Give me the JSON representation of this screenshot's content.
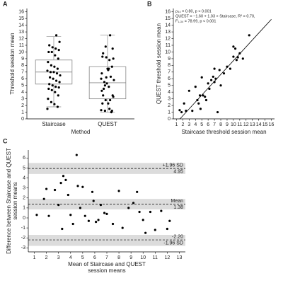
{
  "chart_data": [
    {
      "type": "box",
      "panel": "A",
      "y_label": "Threshold session mean",
      "x_label": "Method",
      "categories": [
        "Staircase",
        "QUEST"
      ],
      "ylim": [
        0,
        16.5
      ],
      "yticks": [
        0,
        1,
        2,
        3,
        4,
        5,
        6,
        7,
        8,
        9,
        10,
        11,
        12,
        13,
        14,
        15,
        16
      ],
      "color": "#000000",
      "box_color": "#888888",
      "boxes": [
        {
          "min": 1.8,
          "q1": 5.2,
          "median": 7.0,
          "q3": 8.8,
          "max": 12.3,
          "points": [
            1.5,
            1.8,
            2.2,
            2.5,
            3,
            3.5,
            4,
            4.3,
            4.5,
            4.7,
            4.8,
            5,
            5.2,
            5.5,
            5.7,
            6,
            6.2,
            6.5,
            6.8,
            7,
            7,
            7.2,
            7.5,
            7.8,
            8,
            8.5,
            9,
            9.5,
            10,
            10,
            10.3,
            10.5,
            10.7,
            11,
            11.5,
            12.5
          ]
        },
        {
          "min": 1.0,
          "q1": 3.0,
          "median": 5.4,
          "q3": 7.8,
          "max": 12.5,
          "points": [
            1.3,
            1.0,
            2.3,
            1.2,
            4.2,
            1.2,
            4.8,
            2.8,
            2.3,
            3.5,
            1.5,
            6.2,
            3.5,
            3.3,
            2.8,
            5.3,
            4.5,
            5.8,
            6.3,
            7.5,
            5.5,
            6.0,
            1.0,
            7.3,
            5.0,
            6.8,
            7.8,
            7.5,
            10.8,
            9.3,
            10.5,
            8.8,
            9.2,
            9.8,
            9.0,
            12.5
          ]
        }
      ]
    },
    {
      "type": "scatter",
      "panel": "B",
      "x_label": "Staircase threshold session mean",
      "y_label": "QUEST threshold session mean",
      "annotations": [
        "ρ₃₄ = 0.80, p < 0.001",
        "QUEST = −1.60 + 1.03 × Staircase, R² = 0.70,",
        "F₁,₃₄ = 78.99, p < 0.001"
      ],
      "xlim": [
        0.5,
        16.5
      ],
      "xticks": [
        1,
        2,
        3,
        4,
        5,
        6,
        7,
        8,
        9,
        10,
        11,
        12,
        13,
        14,
        15,
        16
      ],
      "ylim": [
        0,
        16.5
      ],
      "yticks": [
        0,
        1,
        2,
        3,
        4,
        5,
        6,
        7,
        8,
        9,
        10,
        11,
        12,
        13,
        14,
        15,
        16
      ],
      "color": "#000000",
      "x": [
        1.5,
        1.8,
        2.2,
        2.5,
        3,
        3.5,
        4,
        4.3,
        4.5,
        4.7,
        4.8,
        5,
        5.2,
        5.5,
        5.7,
        6,
        6.2,
        6.5,
        6.8,
        7,
        7,
        7.2,
        7.5,
        7.8,
        8,
        8.5,
        9,
        9.5,
        10,
        10,
        10.3,
        10.5,
        10.7,
        11,
        11.5,
        12.5
      ],
      "values": [
        1.3,
        1.0,
        2.3,
        1.2,
        4.2,
        1.2,
        4.8,
        2.8,
        2.3,
        3.5,
        1.5,
        6.2,
        3.5,
        3.3,
        2.8,
        5.3,
        4.5,
        5.8,
        6.3,
        7.5,
        5.5,
        6.0,
        1.0,
        7.3,
        5.0,
        6.8,
        7.8,
        7.5,
        10.8,
        9.3,
        10.5,
        8.8,
        9.2,
        9.8,
        9.0,
        12.5
      ],
      "fit": {
        "x": [
          1.55,
          16.0
        ],
        "values": [
          0,
          14.88
        ]
      }
    },
    {
      "type": "bland-altman",
      "panel": "C",
      "y_label": "Difference between Staircase and QUEST",
      "y_label_2": "session means",
      "x_label": "Mean of Staircase and QUEST",
      "x_label_2": "session means",
      "xlim": [
        0.5,
        13.5
      ],
      "xticks": [
        1,
        2,
        3,
        4,
        5,
        6,
        7,
        8,
        9,
        10,
        11,
        12,
        13
      ],
      "ylim": [
        -3.4,
        6.8
      ],
      "yticks": [
        -3,
        -2,
        -1,
        0,
        1,
        2,
        3,
        4,
        5,
        6
      ],
      "color": "#000000",
      "band_color": "#dcdcdc",
      "x": [
        1.2,
        1.8,
        2,
        2.2,
        2.7,
        3,
        3.2,
        3.3,
        3.4,
        3.6,
        3.8,
        4,
        4.2,
        4.5,
        4.6,
        4.8,
        5,
        5.2,
        5.5,
        5.8,
        5.9,
        6.1,
        6.3,
        6.5,
        6.8,
        7,
        7.5,
        8,
        8.3,
        8.8,
        9.2,
        9.5,
        9.7,
        10,
        10.2,
        10.6,
        11,
        11.5,
        12.2,
        12
      ],
      "values": [
        0.3,
        1.9,
        2.9,
        0.2,
        2.8,
        1.3,
        3.5,
        -1.1,
        4.2,
        3.8,
        2.3,
        0.3,
        -0.6,
        6.3,
        3.2,
        1.0,
        3.1,
        0.2,
        -0.3,
        2.6,
        1.7,
        -0.4,
        -0.2,
        1.3,
        0.5,
        0.4,
        -0.6,
        2.7,
        -1.0,
        1.0,
        1.5,
        2.6,
        0.6,
        -0.2,
        -1.5,
        0.6,
        -1.2,
        0.7,
        -0.3,
        -1.1
      ],
      "reference_lines": [
        {
          "name": "+1.96 SD",
          "value": 4.95,
          "label": "4.95",
          "band": [
            4.4,
            5.5
          ]
        },
        {
          "name": "Mean",
          "value": 1.38,
          "label": "1.38",
          "band": [
            0.85,
            1.9
          ]
        },
        {
          "name": "-1.96 SD",
          "value": -2.2,
          "label": "-2.20",
          "band": [
            -2.8,
            -1.7
          ]
        }
      ]
    }
  ]
}
